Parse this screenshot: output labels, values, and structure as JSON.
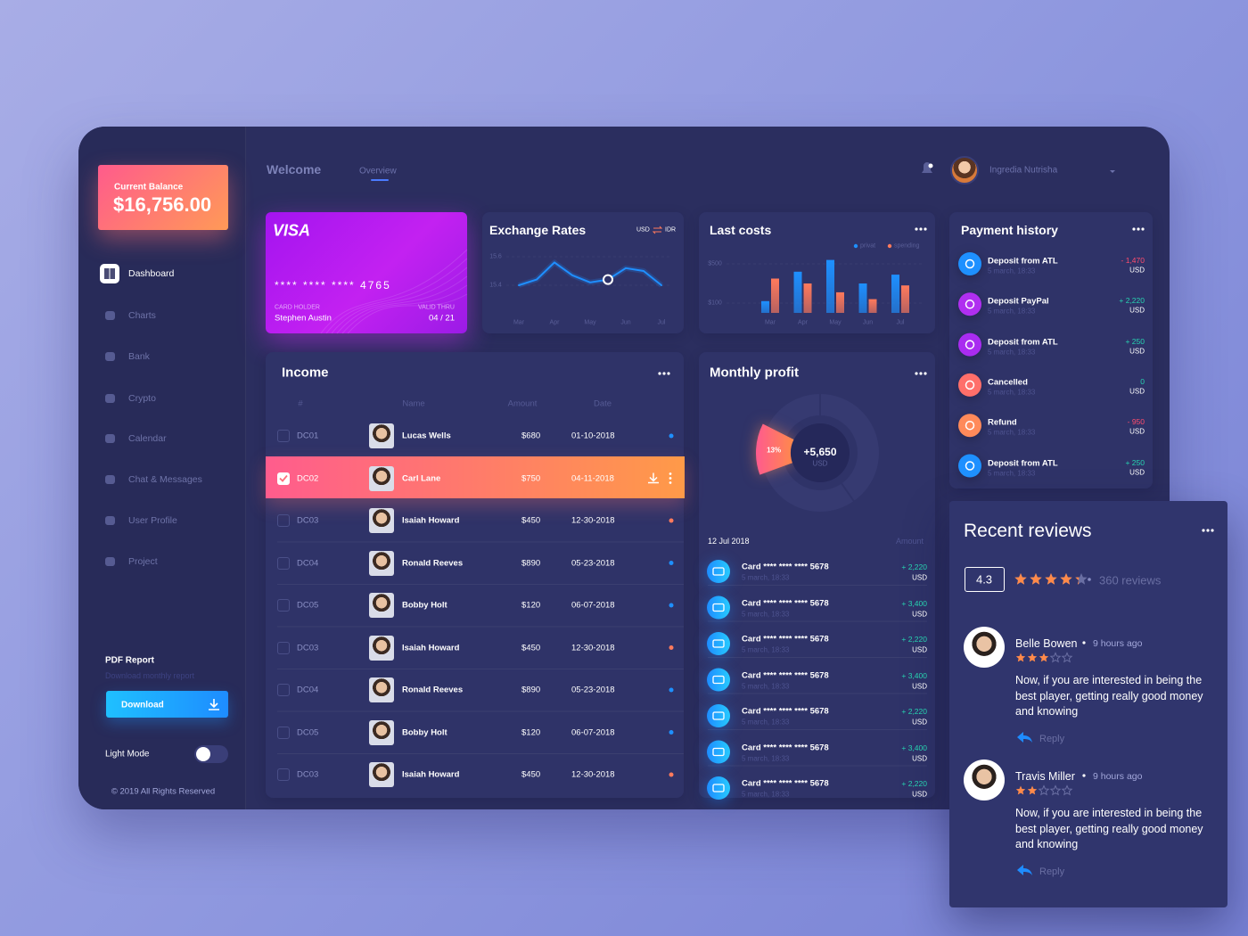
{
  "sidebar": {
    "balance_label": "Current Balance",
    "balance": "$16,756.00",
    "nav": [
      "Dashboard",
      "Charts",
      "Bank",
      "Crypto",
      "Calendar",
      "Chat & Messages",
      "User Profile",
      "Project"
    ],
    "report_title": "PDF Report",
    "report_subtitle": "Download monthly report",
    "download": "Download",
    "light_mode": "Light Mode",
    "copyright": "© 2019 All Rights Reserved"
  },
  "header": {
    "title": "Welcome",
    "tab": "Overview",
    "user": "Ingredia Nutrisha"
  },
  "card": {
    "brand": "VISA",
    "number": "**** **** **** 4765",
    "holder_label": "CARD HOLDER",
    "holder": "Stephen Austin",
    "valid_label": "VALID THRU",
    "valid": "04 / 21"
  },
  "exchange_rates": {
    "title": "Exchange Rates",
    "from": "USD",
    "to": "IDR",
    "type": "line",
    "categories": [
      "Mar",
      null,
      "Apr",
      null,
      "May",
      null,
      "Jun",
      null,
      "Jul"
    ],
    "values": [
      15.4,
      15.44,
      15.56,
      15.47,
      15.42,
      15.44,
      15.52,
      15.5,
      15.4
    ],
    "ylim": [
      15.2,
      15.7
    ],
    "yticks": [
      15.4,
      15.6
    ],
    "color": "#1f8fff"
  },
  "last_costs": {
    "title": "Last costs",
    "type": "bar",
    "categories": [
      "Mar",
      "Apr",
      "May",
      "Jun",
      "Jul"
    ],
    "series": [
      {
        "name": "privat",
        "color": "#1e90ff",
        "values": [
          120,
          420,
          540,
          300,
          390
        ]
      },
      {
        "name": "spending",
        "color": "#ff7a5c",
        "values": [
          350,
          300,
          210,
          140,
          280
        ]
      }
    ],
    "ylim": [
      0,
      600
    ],
    "yticks": [
      {
        "value": 100,
        "label": "$100"
      },
      {
        "value": 500,
        "label": "$500"
      }
    ]
  },
  "income": {
    "title": "Income",
    "columns": [
      "#",
      "Name",
      "Amount",
      "Date"
    ],
    "rows": [
      {
        "id": "DC01",
        "name": "Lucas Wells",
        "amount": "$680",
        "date": "01-10-2018",
        "dot": "#1e90ff"
      },
      {
        "id": "DC02",
        "name": "Carl Lane",
        "amount": "$750",
        "date": "04-11-2018"
      },
      {
        "id": "DC03",
        "name": "Isaiah Howard",
        "amount": "$450",
        "date": "12-30-2018",
        "dot": "#ff7a5c"
      },
      {
        "id": "DC04",
        "name": "Ronald Reeves",
        "amount": "$890",
        "date": "05-23-2018",
        "dot": "#1e90ff"
      },
      {
        "id": "DC05",
        "name": "Bobby Holt",
        "amount": "$120",
        "date": "06-07-2018",
        "dot": "#1e90ff"
      },
      {
        "id": "DC03",
        "name": "Isaiah Howard",
        "amount": "$450",
        "date": "12-30-2018",
        "dot": "#ff7a5c"
      },
      {
        "id": "DC04",
        "name": "Ronald Reeves",
        "amount": "$890",
        "date": "05-23-2018",
        "dot": "#1e90ff"
      },
      {
        "id": "DC05",
        "name": "Bobby Holt",
        "amount": "$120",
        "date": "06-07-2018",
        "dot": "#1e90ff"
      },
      {
        "id": "DC03",
        "name": "Isaiah Howard",
        "amount": "$450",
        "date": "12-30-2018",
        "dot": "#ff7a5c"
      }
    ]
  },
  "monthly_profit": {
    "title": "Monthly profit",
    "type": "pie",
    "values": [
      13
    ],
    "value_labels": [
      "13%"
    ],
    "color": "#ff8a4a",
    "center_value": "+5,650",
    "center_unit": "USD",
    "list_date": "12 Jul 2018",
    "list_header": "Amount",
    "items": [
      {
        "title": "Card **** **** **** 5678",
        "date": "5 march, 18:33",
        "amount": "+ 2,220",
        "currency": "USD"
      },
      {
        "title": "Card **** **** **** 5678",
        "date": "5 march, 18:33",
        "amount": "+ 3,400",
        "currency": "USD"
      },
      {
        "title": "Card **** **** **** 5678",
        "date": "5 march, 18:33",
        "amount": "+ 2,220",
        "currency": "USD"
      },
      {
        "title": "Card **** **** **** 5678",
        "date": "5 march, 18:33",
        "amount": "+ 3,400",
        "currency": "USD"
      },
      {
        "title": "Card **** **** **** 5678",
        "date": "5 march, 18:33",
        "amount": "+ 2,220",
        "currency": "USD"
      },
      {
        "title": "Card **** **** **** 5678",
        "date": "5 march, 18:33",
        "amount": "+ 3,400",
        "currency": "USD"
      },
      {
        "title": "Card **** **** **** 5678",
        "date": "5 march, 18:33",
        "amount": "+ 2,220",
        "currency": "USD"
      }
    ]
  },
  "payment_history": {
    "title": "Payment history",
    "items": [
      {
        "title": "Deposit from ATL",
        "date": "5 march, 18:33",
        "amount": "- 1,470",
        "currency": "USD",
        "color": "#1e90ff"
      },
      {
        "title": "Deposit PayPal",
        "date": "5 march, 18:33",
        "amount": "+ 2,220",
        "currency": "USD",
        "color": "#b02ff0"
      },
      {
        "title": "Deposit from ATL",
        "date": "5 march, 18:33",
        "amount": "+ 250",
        "currency": "USD",
        "color": "#a92cf0"
      },
      {
        "title": "Cancelled",
        "date": "5 march, 18:33",
        "amount": "0",
        "currency": "USD",
        "color": "#ff6f6a"
      },
      {
        "title": "Refund",
        "date": "5 march, 18:33",
        "amount": "- 950",
        "currency": "USD",
        "color": "#ff8a5a"
      },
      {
        "title": "Deposit from ATL",
        "date": "5 march, 18:33",
        "amount": "+ 250",
        "currency": "USD",
        "color": "#1e90ff"
      }
    ]
  },
  "reviews": {
    "title": "Recent reviews",
    "rating": 4.3,
    "count": "360 reviews",
    "items": [
      {
        "name": "Belle Bowen",
        "time": "9 hours ago",
        "stars": 3,
        "text": "Now, if you are interested in being the best player, getting really good money and knowing",
        "reply": "Reply"
      },
      {
        "name": "Travis Miller",
        "time": "9 hours ago",
        "stars": 2,
        "text": "Now, if you are interested in being the best player, getting really good money and knowing",
        "reply": "Reply"
      }
    ]
  }
}
